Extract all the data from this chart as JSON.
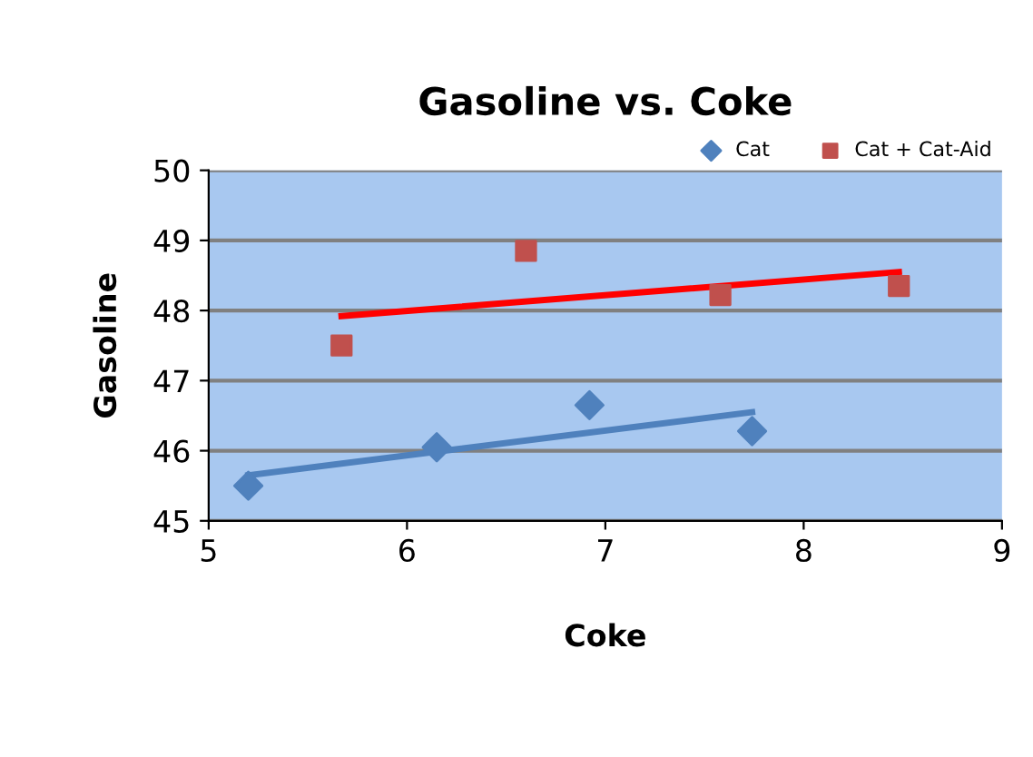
{
  "chart_data": {
    "type": "scatter",
    "title": "Gasoline vs. Coke",
    "xlabel": "Coke",
    "ylabel": "Gasoline",
    "xlim": [
      5,
      9
    ],
    "xticks": [
      5,
      6,
      7,
      8,
      9
    ],
    "ylim": [
      45,
      50
    ],
    "yticks": [
      45,
      46,
      47,
      48,
      49,
      50
    ],
    "grid": "y",
    "legend": "top right",
    "series": [
      {
        "name": "Cat",
        "color": "#4f81bd",
        "marker": "diamond",
        "x": [
          5.2,
          6.15,
          6.92,
          7.74
        ],
        "values": [
          45.5,
          46.05,
          46.65,
          46.28
        ]
      },
      {
        "name": "Cat + Cat-Aid",
        "color": "#c0504d",
        "marker": "square",
        "x": [
          5.67,
          6.6,
          7.58,
          8.48
        ],
        "values": [
          47.5,
          48.85,
          48.22,
          48.35
        ]
      },
      {
        "type": "line",
        "color": "#4f81bd",
        "x": [
          5.2,
          7.74
        ],
        "values": [
          45.65,
          46.55
        ]
      },
      {
        "type": "line",
        "color": "#ff0000",
        "x": [
          5.67,
          8.48
        ],
        "values": [
          47.92,
          48.55
        ]
      }
    ]
  }
}
